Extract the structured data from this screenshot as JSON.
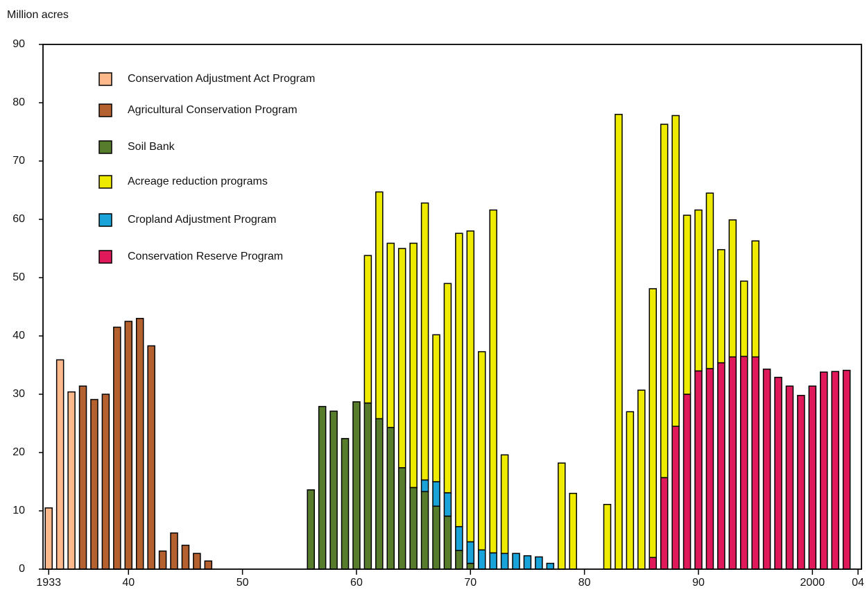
{
  "chart_data": {
    "type": "stacked-bar",
    "y_label": "Million acres",
    "x": [
      1933,
      1934,
      1935,
      1936,
      1937,
      1938,
      1939,
      1940,
      1941,
      1942,
      1943,
      1944,
      1945,
      1946,
      1947,
      1948,
      1949,
      1950,
      1951,
      1952,
      1953,
      1954,
      1955,
      1956,
      1957,
      1958,
      1959,
      1960,
      1961,
      1962,
      1963,
      1964,
      1965,
      1966,
      1967,
      1968,
      1969,
      1970,
      1971,
      1972,
      1973,
      1974,
      1975,
      1976,
      1977,
      1978,
      1979,
      1980,
      1981,
      1982,
      1983,
      1984,
      1985,
      1986,
      1987,
      1988,
      1989,
      1990,
      1991,
      1992,
      1993,
      1994,
      1995,
      1996,
      1997,
      1998,
      1999,
      2000,
      2001,
      2002,
      2003
    ],
    "xlim": [
      1932.5,
      2004.3
    ],
    "xticks": [
      {
        "value": 1933,
        "label": "1933"
      },
      {
        "value": 1940,
        "label": "40"
      },
      {
        "value": 1950,
        "label": "50"
      },
      {
        "value": 1960,
        "label": "60"
      },
      {
        "value": 1970,
        "label": "70"
      },
      {
        "value": 1980,
        "label": "80"
      },
      {
        "value": 1990,
        "label": "90"
      },
      2000,
      {
        "value": 2004,
        "label": "04"
      }
    ],
    "ylim": [
      0,
      90
    ],
    "yticks": [
      0,
      10,
      20,
      30,
      40,
      50,
      60,
      70,
      80,
      90
    ],
    "stack_order": [
      0,
      1,
      2,
      4,
      5,
      3
    ],
    "series": [
      {
        "name": "Conservation Adjustment Act Program",
        "color": "#fdb98c",
        "values": [
          10.5,
          35.9,
          30.4,
          null,
          null,
          null,
          null,
          null,
          null,
          null,
          null,
          null,
          null,
          null,
          null,
          null,
          null,
          null,
          null,
          null,
          null,
          null,
          null,
          null,
          null,
          null,
          null,
          null,
          null,
          null,
          null,
          null,
          null,
          null,
          null,
          null,
          null,
          null,
          null,
          null,
          null,
          null,
          null,
          null,
          null,
          null,
          null,
          null,
          null,
          null,
          null,
          null,
          null,
          null,
          null,
          null,
          null,
          null,
          null,
          null,
          null,
          null,
          null,
          null,
          null,
          null,
          null,
          null,
          null,
          null,
          null
        ]
      },
      {
        "name": "Agricultural Conservation Program",
        "color": "#b5602f",
        "values": [
          null,
          null,
          null,
          31.4,
          29.1,
          30.0,
          41.5,
          42.5,
          43.0,
          38.3,
          3.1,
          6.2,
          4.1,
          2.7,
          1.4,
          null,
          null,
          null,
          null,
          null,
          null,
          null,
          null,
          null,
          null,
          null,
          null,
          null,
          null,
          null,
          null,
          null,
          null,
          null,
          null,
          null,
          null,
          null,
          null,
          null,
          null,
          null,
          null,
          null,
          null,
          null,
          null,
          null,
          null,
          null,
          null,
          null,
          null,
          null,
          null,
          null,
          null,
          null,
          null,
          null,
          null,
          null,
          null,
          null,
          null,
          null,
          null,
          null,
          null,
          null,
          null
        ]
      },
      {
        "name": "Soil Bank",
        "color": "#567c2c",
        "values": [
          null,
          null,
          null,
          null,
          null,
          null,
          null,
          null,
          null,
          null,
          null,
          null,
          null,
          null,
          null,
          null,
          null,
          null,
          null,
          null,
          null,
          null,
          null,
          13.6,
          27.9,
          27.1,
          22.4,
          28.7,
          28.5,
          25.8,
          24.3,
          17.4,
          14.0,
          13.3,
          10.8,
          9.1,
          3.2,
          1.0,
          null,
          null,
          null,
          null,
          null,
          null,
          null,
          null,
          null,
          null,
          null,
          null,
          null,
          null,
          null,
          null,
          null,
          null,
          null,
          null,
          null,
          null,
          null,
          null,
          null,
          null,
          null,
          null,
          null,
          null,
          null,
          null,
          null
        ]
      },
      {
        "name": "Acreage reduction programs",
        "color": "#eeea00",
        "values": [
          null,
          null,
          null,
          null,
          null,
          null,
          null,
          null,
          null,
          null,
          null,
          null,
          null,
          null,
          null,
          null,
          null,
          null,
          null,
          null,
          null,
          null,
          null,
          null,
          null,
          null,
          null,
          null,
          25.3,
          38.9,
          31.6,
          37.6,
          41.9,
          47.5,
          25.2,
          35.9,
          50.3,
          53.3,
          34.0,
          58.8,
          16.9,
          null,
          null,
          null,
          null,
          18.2,
          13.0,
          null,
          null,
          11.1,
          78.0,
          27.0,
          30.7,
          46.1,
          60.6,
          53.3,
          30.7,
          27.6,
          30.1,
          19.4,
          23.5,
          12.9,
          19.9,
          null,
          null,
          null,
          null,
          null,
          null,
          null,
          null
        ]
      },
      {
        "name": "Cropland Adjustment Program",
        "color": "#1aa3d9",
        "values": [
          null,
          null,
          null,
          null,
          null,
          null,
          null,
          null,
          null,
          null,
          null,
          null,
          null,
          null,
          null,
          null,
          null,
          null,
          null,
          null,
          null,
          null,
          null,
          null,
          null,
          null,
          null,
          null,
          null,
          null,
          null,
          null,
          null,
          2.0,
          4.2,
          4.0,
          4.1,
          3.7,
          3.3,
          2.8,
          2.7,
          2.7,
          2.3,
          2.1,
          1.0,
          null,
          null,
          null,
          null,
          null,
          null,
          null,
          null,
          null,
          null,
          null,
          null,
          null,
          null,
          null,
          null,
          null,
          null,
          null,
          null,
          null,
          null,
          null,
          null,
          null,
          null
        ]
      },
      {
        "name": "Conservation Reserve Program",
        "color": "#e0195a",
        "values": [
          null,
          null,
          null,
          null,
          null,
          null,
          null,
          null,
          null,
          null,
          null,
          null,
          null,
          null,
          null,
          null,
          null,
          null,
          null,
          null,
          null,
          null,
          null,
          null,
          null,
          null,
          null,
          null,
          null,
          null,
          null,
          null,
          null,
          null,
          null,
          null,
          null,
          null,
          null,
          null,
          null,
          null,
          null,
          null,
          null,
          null,
          null,
          null,
          null,
          null,
          null,
          null,
          null,
          2.0,
          15.7,
          24.5,
          30.0,
          34.0,
          34.4,
          35.4,
          36.4,
          36.5,
          36.4,
          34.3,
          32.9,
          31.4,
          29.8,
          31.4,
          33.8,
          33.9,
          34.1
        ]
      }
    ]
  }
}
